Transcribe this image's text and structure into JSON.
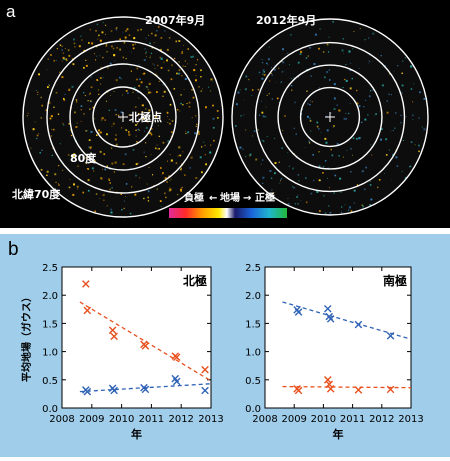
{
  "figure": {
    "panel_a": {
      "letter": "a",
      "maps": [
        {
          "date": "2007年9月",
          "pole_label": "北極点",
          "ring_label_80": "80度",
          "ring_label_70": "北緯70度"
        },
        {
          "date": "2012年9月"
        }
      ],
      "colorbar": {
        "left_label": "負極",
        "arrow_left": "←",
        "center_label": "地場",
        "arrow_right": "→",
        "right_label": "正極"
      },
      "colors": {
        "background": "#000000",
        "negative": "#f2a300",
        "positive": "#3a86c8",
        "rings": "#ffffff"
      }
    },
    "panel_b": {
      "letter": "b",
      "ylabel": "平均地場（ガウス）",
      "background": "#9fcdea"
    }
  },
  "chart_data": [
    {
      "type": "scatter",
      "title": "北極",
      "xlabel": "年",
      "ylabel": "平均地場（ガウス）",
      "xlim": [
        2008,
        2013
      ],
      "ylim": [
        0.0,
        2.5
      ],
      "x_ticks": [
        "2008",
        "2009",
        "2010",
        "2011",
        "2012",
        "2013"
      ],
      "y_ticks": [
        "0.0",
        "0.5",
        "1.0",
        "1.5",
        "2.0",
        "2.5"
      ],
      "series": [
        {
          "color": "#e8501e",
          "points": [
            [
              2008.8,
              2.2
            ],
            [
              2008.85,
              1.73
            ],
            [
              2009.7,
              1.38
            ],
            [
              2009.75,
              1.27
            ],
            [
              2010.75,
              1.13
            ],
            [
              2010.8,
              1.1
            ],
            [
              2011.8,
              0.92
            ],
            [
              2011.85,
              0.9
            ],
            [
              2012.8,
              0.68
            ]
          ],
          "fit": [
            [
              2008.6,
              1.88
            ],
            [
              2013.0,
              0.48
            ]
          ]
        },
        {
          "color": "#2f62b5",
          "points": [
            [
              2008.8,
              0.32
            ],
            [
              2008.85,
              0.29
            ],
            [
              2009.7,
              0.35
            ],
            [
              2009.75,
              0.31
            ],
            [
              2010.75,
              0.36
            ],
            [
              2010.8,
              0.33
            ],
            [
              2011.8,
              0.52
            ],
            [
              2011.85,
              0.47
            ],
            [
              2012.8,
              0.31
            ]
          ],
          "fit": [
            [
              2008.6,
              0.29
            ],
            [
              2013.0,
              0.43
            ]
          ]
        }
      ]
    },
    {
      "type": "scatter",
      "title": "南極",
      "xlabel": "年",
      "xlim": [
        2008,
        2013
      ],
      "ylim": [
        0.0,
        2.5
      ],
      "x_ticks": [
        "2008",
        "2009",
        "2010",
        "2011",
        "2012",
        "2013"
      ],
      "y_ticks": [
        "0.0",
        "0.5",
        "1.0",
        "1.5",
        "2.0",
        "2.5"
      ],
      "series": [
        {
          "color": "#2f62b5",
          "points": [
            [
              2009.1,
              1.74
            ],
            [
              2009.15,
              1.7
            ],
            [
              2010.15,
              1.76
            ],
            [
              2010.2,
              1.62
            ],
            [
              2010.25,
              1.58
            ],
            [
              2011.2,
              1.48
            ],
            [
              2012.3,
              1.28
            ]
          ],
          "fit": [
            [
              2008.6,
              1.88
            ],
            [
              2013.0,
              1.22
            ]
          ]
        },
        {
          "color": "#e8501e",
          "points": [
            [
              2009.1,
              0.34
            ],
            [
              2009.15,
              0.31
            ],
            [
              2010.15,
              0.5
            ],
            [
              2010.2,
              0.42
            ],
            [
              2010.25,
              0.34
            ],
            [
              2011.2,
              0.32
            ],
            [
              2012.3,
              0.33
            ]
          ],
          "fit": [
            [
              2008.6,
              0.38
            ],
            [
              2013.0,
              0.36
            ]
          ]
        }
      ]
    }
  ]
}
